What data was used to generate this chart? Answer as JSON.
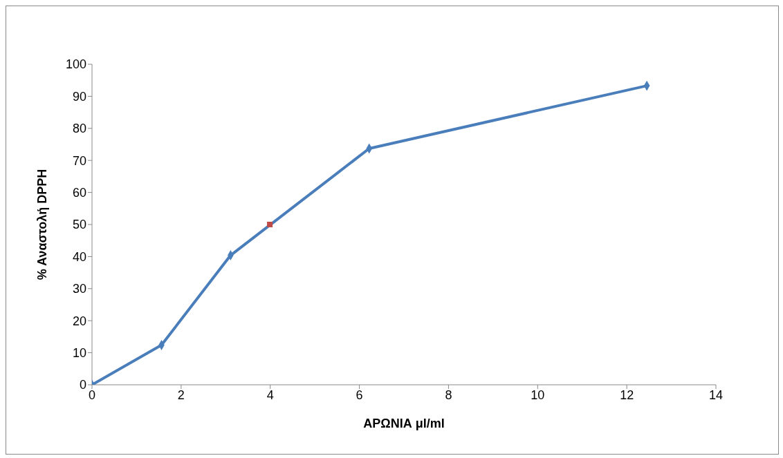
{
  "chart_data": {
    "type": "line",
    "xlabel": "ΑΡΩΝΙΑ μl/ml",
    "ylabel": "% Αναστολή DPPH",
    "xlim": [
      0,
      14
    ],
    "xticks": [
      0,
      2,
      4,
      6,
      8,
      10,
      12,
      14
    ],
    "ylim": [
      0,
      100
    ],
    "yticks": [
      0,
      10,
      20,
      30,
      40,
      50,
      60,
      70,
      80,
      90,
      100
    ],
    "grid": false,
    "legend": false,
    "series": [
      {
        "type": "line",
        "color": "#4a7ebb",
        "marker": "diamond",
        "line_style": "solid",
        "x": [
          0,
          1.56,
          3.11,
          6.22,
          12.45
        ],
        "values": [
          0,
          12.4,
          40.4,
          73.7,
          93.3
        ]
      },
      {
        "type": "scatter",
        "color": "#be4b48",
        "marker": "square",
        "x": [
          3.99
        ],
        "values": [
          50
        ]
      }
    ]
  }
}
